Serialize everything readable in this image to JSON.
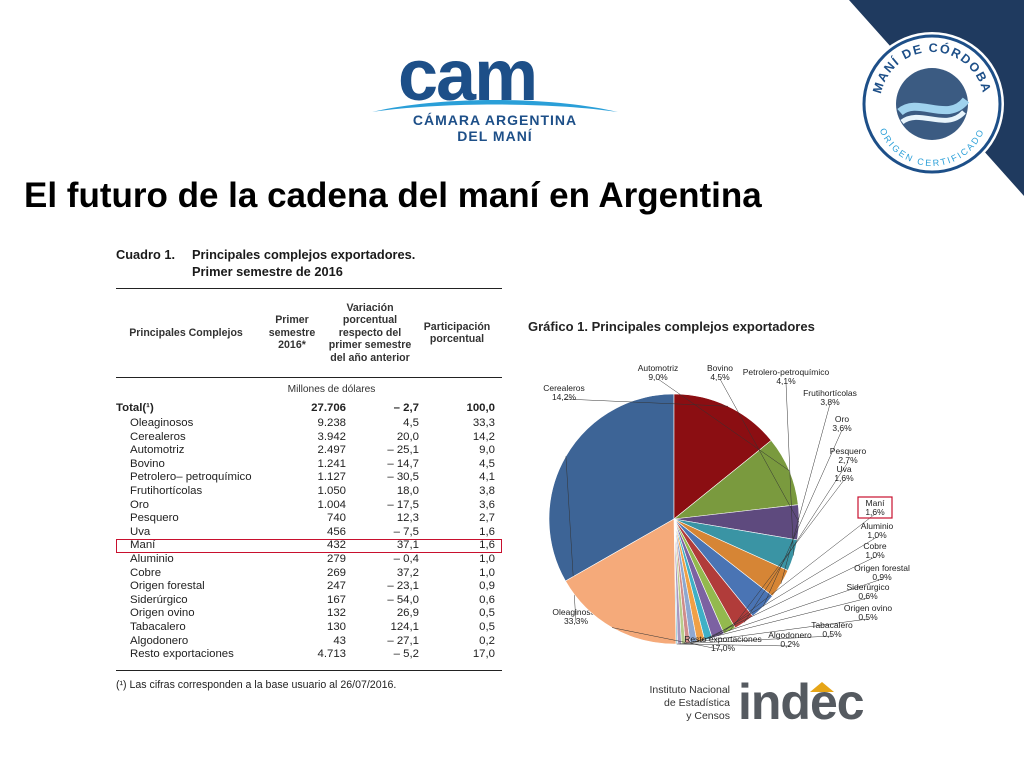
{
  "header": {
    "cam_logo": {
      "word": "cam",
      "line1": "CÁMARA ARGENTINA",
      "line2": "DEL MANÍ"
    },
    "seal": {
      "top_text": "MANÍ DE CÓRDOBA",
      "bottom_text": "ORIGEN CERTIFICADO"
    },
    "title": "El futuro de la cadena del maní en Argentina"
  },
  "table": {
    "caption_number": "Cuadro 1.",
    "caption_line1": "Principales complejos exportadores.",
    "caption_line2": "Primer semestre de 2016",
    "headers": [
      "Principales Complejos",
      "Primer semestre 2016*",
      "Variación porcentual respecto del primer semestre del año anterior",
      "Participación porcentual"
    ],
    "units": "Millones de dólares",
    "total": {
      "name": "Total(¹)",
      "value": "27.706",
      "var": "– 2,7",
      "part": "100,0"
    },
    "rows": [
      {
        "name": "Oleaginosos",
        "value": "9.238",
        "var": "4,5",
        "part": "33,3"
      },
      {
        "name": "Cerealeros",
        "value": "3.942",
        "var": "20,0",
        "part": "14,2"
      },
      {
        "name": "Automotriz",
        "value": "2.497",
        "var": "– 25,1",
        "part": "9,0"
      },
      {
        "name": "Bovino",
        "value": "1.241",
        "var": "– 14,7",
        "part": "4,5"
      },
      {
        "name": "Petrolero– petroquímico",
        "value": "1.127",
        "var": "– 30,5",
        "part": "4,1"
      },
      {
        "name": "Frutihortícolas",
        "value": "1.050",
        "var": "18,0",
        "part": "3,8"
      },
      {
        "name": "Oro",
        "value": "1.004",
        "var": "– 17,5",
        "part": "3,6"
      },
      {
        "name": "Pesquero",
        "value": "740",
        "var": "12,3",
        "part": "2,7"
      },
      {
        "name": "Uva",
        "value": "456",
        "var": "– 7,5",
        "part": "1,6"
      },
      {
        "name": "Maní",
        "value": "432",
        "var": "37,1",
        "part": "1,6",
        "highlight": true
      },
      {
        "name": "Aluminio",
        "value": "279",
        "var": "– 0,4",
        "part": "1,0"
      },
      {
        "name": "Cobre",
        "value": "269",
        "var": "37,2",
        "part": "1,0"
      },
      {
        "name": "Origen forestal",
        "value": "247",
        "var": "– 23,1",
        "part": "0,9"
      },
      {
        "name": "Siderúrgico",
        "value": "167",
        "var": "– 54,0",
        "part": "0,6"
      },
      {
        "name": "Origen ovino",
        "value": "132",
        "var": "26,9",
        "part": "0,5"
      },
      {
        "name": "Tabacalero",
        "value": "130",
        "var": "124,1",
        "part": "0,5"
      },
      {
        "name": "Algodonero",
        "value": "43",
        "var": "– 27,1",
        "part": "0,2"
      },
      {
        "name": "Resto exportaciones",
        "value": "4.713",
        "var": "– 5,2",
        "part": "17,0"
      }
    ],
    "footnote": "(¹) Las cifras corresponden a la base usuario al 26/07/2016."
  },
  "chart_data": {
    "type": "pie",
    "title": "Gráfico 1. Principales complejos exportadores",
    "unit": "%",
    "slices": [
      {
        "label": "Oleaginosos",
        "value": 33.3,
        "display": "33,3%",
        "color": "#3d6496"
      },
      {
        "label": "Cerealeros",
        "value": 14.2,
        "display": "14,2%",
        "color": "#8b0e12"
      },
      {
        "label": "Automotriz",
        "value": 9.0,
        "display": "9,0%",
        "color": "#7a9a3e"
      },
      {
        "label": "Bovino",
        "value": 4.5,
        "display": "4,5%",
        "color": "#5e4a7e"
      },
      {
        "label": "Petrolero-petroquímico",
        "value": 4.1,
        "display": "4,1%",
        "color": "#3a94a4"
      },
      {
        "label": "Frutihortícolas",
        "value": 3.8,
        "display": "3,8%",
        "color": "#d68535"
      },
      {
        "label": "Oro",
        "value": 3.6,
        "display": "3,6%",
        "color": "#4a74b4"
      },
      {
        "label": "Pesquero",
        "value": 2.7,
        "display": "2,7%",
        "color": "#b13c3a"
      },
      {
        "label": "Uva",
        "value": 1.6,
        "display": "1,6%",
        "color": "#93b94e"
      },
      {
        "label": "Maní",
        "value": 1.6,
        "display": "1,6%",
        "color": "#7c62a2",
        "highlight": true
      },
      {
        "label": "Aluminio",
        "value": 1.0,
        "display": "1,0%",
        "color": "#3fb0c6"
      },
      {
        "label": "Cobre",
        "value": 1.0,
        "display": "1,0%",
        "color": "#f0a046"
      },
      {
        "label": "Origen forestal",
        "value": 0.9,
        "display": "0,9%",
        "color": "#8ea8d0"
      },
      {
        "label": "Siderúrgico",
        "value": 0.6,
        "display": "0,6%",
        "color": "#d08c8a"
      },
      {
        "label": "Origen ovino",
        "value": 0.5,
        "display": "0,5%",
        "color": "#b8cc8a"
      },
      {
        "label": "Tabacalero",
        "value": 0.5,
        "display": "0,5%",
        "color": "#a898c0"
      },
      {
        "label": "Algodonero",
        "value": 0.2,
        "display": "0,2%",
        "color": "#8ccad6"
      },
      {
        "label": "Resto exportaciones",
        "value": 17.0,
        "display": "17,0%",
        "color": "#f5aa7a"
      }
    ]
  },
  "footer": {
    "indec_institution": [
      "Instituto Nacional",
      "de Estadística",
      "y Censos"
    ],
    "indec_word": "indec"
  },
  "colors": {
    "brand_blue": "#1d4f88",
    "corner_navy": "#1f3a5f",
    "highlight_red": "#c8102e",
    "indec_accent": "#e6a517"
  }
}
